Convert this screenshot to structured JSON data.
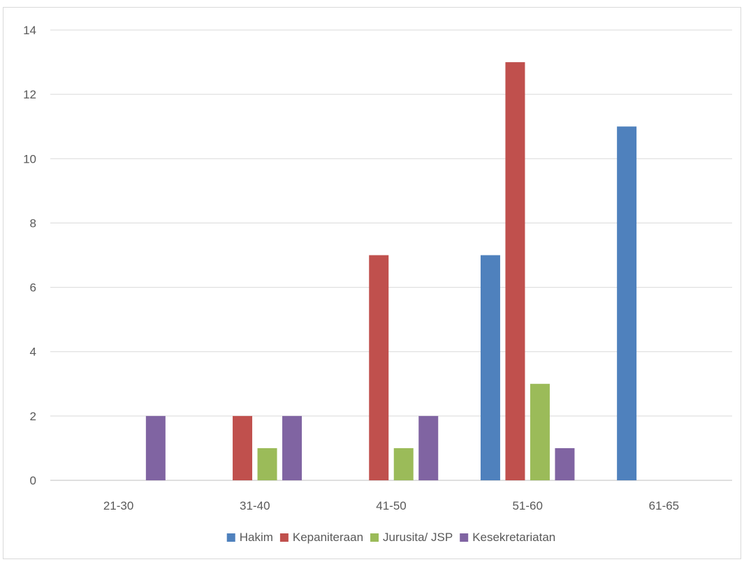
{
  "chart_data": {
    "type": "bar",
    "title": "",
    "xlabel": "",
    "ylabel": "",
    "categories": [
      "21-30",
      "31-40",
      "41-50",
      "51-60",
      "61-65"
    ],
    "series": [
      {
        "name": "Hakim",
        "color": "#4f81bd",
        "values": [
          0,
          0,
          0,
          7,
          11
        ]
      },
      {
        "name": "Kepaniteraan",
        "color": "#c0504d",
        "values": [
          0,
          2,
          7,
          13,
          0
        ]
      },
      {
        "name": "Jurusita/ JSP",
        "color": "#9bbb59",
        "values": [
          0,
          1,
          1,
          3,
          0
        ]
      },
      {
        "name": "Kesekretariatan",
        "color": "#8064a2",
        "values": [
          2,
          2,
          2,
          1,
          0
        ]
      }
    ],
    "yticks": [
      0,
      2,
      4,
      6,
      8,
      10,
      12,
      14
    ],
    "ylim": [
      0,
      14
    ],
    "grid": true,
    "legend_position": "bottom"
  }
}
